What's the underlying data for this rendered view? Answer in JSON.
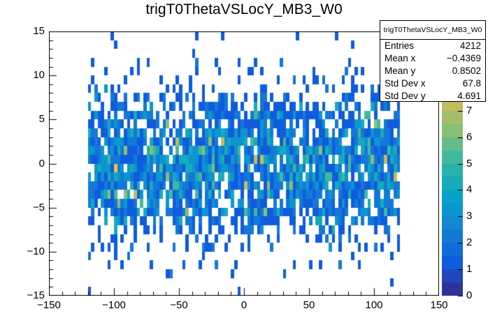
{
  "title": "trigT0ThetaVSLocY_MB3_W0",
  "stats": {
    "header": "trigT0ThetaVSLocY_MB3_W0",
    "rows": [
      {
        "label": "Entries",
        "value": "4212"
      },
      {
        "label": "Mean x",
        "value": "−0.4369"
      },
      {
        "label": "Mean y",
        "value": "0.8502"
      },
      {
        "label": "Std Dev x",
        "value": "67.8"
      },
      {
        "label": "Std Dev y",
        "value": "4.691"
      }
    ]
  },
  "chart_data": {
    "type": "heatmap",
    "title": "trigT0ThetaVSLocY_MB3_W0",
    "x_range": [
      -150,
      150
    ],
    "y_range": [
      -15,
      15
    ],
    "z_range": [
      0,
      10
    ],
    "x_data_range": [
      -120,
      120
    ],
    "x_bin_width": 2.5,
    "y_bin_width": 1,
    "x_minor_step": 10,
    "y_minor_step": 1,
    "n_contours": 20,
    "grid": false,
    "x_ticks": [
      {
        "v": -150,
        "label": "−150"
      },
      {
        "v": -100,
        "label": "−100"
      },
      {
        "v": -50,
        "label": "−50"
      },
      {
        "v": 0,
        "label": "0"
      },
      {
        "v": 50,
        "label": "50"
      },
      {
        "v": 100,
        "label": "100"
      },
      {
        "v": 150,
        "label": "150"
      }
    ],
    "y_ticks": [
      {
        "v": -15,
        "label": "−15"
      },
      {
        "v": -10,
        "label": "−10"
      },
      {
        "v": -5,
        "label": "−5"
      },
      {
        "v": 0,
        "label": "0"
      },
      {
        "v": 5,
        "label": "5"
      },
      {
        "v": 10,
        "label": "10"
      },
      {
        "v": 15,
        "label": "15"
      }
    ],
    "z_ticks": [
      {
        "v": 0,
        "label": "0"
      },
      {
        "v": 1,
        "label": "1"
      },
      {
        "v": 2,
        "label": "2"
      },
      {
        "v": 3,
        "label": "3"
      },
      {
        "v": 4,
        "label": "4"
      },
      {
        "v": 5,
        "label": "5"
      },
      {
        "v": 6,
        "label": "6"
      },
      {
        "v": 7,
        "label": "7"
      }
    ],
    "stats": {
      "entries": 4212,
      "mean_x": -0.4369,
      "mean_y": 0.8502,
      "std_dev_x": 67.8,
      "std_dev_y": 4.691
    },
    "palette_stops": [
      [
        0.2082,
        0.1664,
        0.5293
      ],
      [
        0.0592,
        0.3599,
        0.8684
      ],
      [
        0.078,
        0.5041,
        0.8385
      ],
      [
        0.0232,
        0.6419,
        0.7914
      ],
      [
        0.1802,
        0.7178,
        0.6425
      ],
      [
        0.5301,
        0.7492,
        0.4662
      ],
      [
        0.8186,
        0.7328,
        0.3499
      ],
      [
        0.9956,
        0.7862,
        0.1968
      ],
      [
        0.9764,
        0.9832,
        0.0539
      ]
    ],
    "density_bands": [
      {
        "abs_y_max": 2,
        "fill": 0.87,
        "weights": [
          [
            1,
            0.28
          ],
          [
            2,
            0.26
          ],
          [
            3,
            0.2
          ],
          [
            4,
            0.14
          ],
          [
            5,
            0.07
          ],
          [
            6,
            0.03
          ],
          [
            7,
            0.01
          ],
          [
            8,
            0.003
          ]
        ]
      },
      {
        "abs_y_max": 4,
        "fill": 0.82,
        "weights": [
          [
            1,
            0.34
          ],
          [
            2,
            0.27
          ],
          [
            3,
            0.19
          ],
          [
            4,
            0.12
          ],
          [
            5,
            0.05
          ],
          [
            6,
            0.02
          ],
          [
            7,
            0.01
          ]
        ]
      },
      {
        "abs_y_max": 6,
        "fill": 0.72,
        "weights": [
          [
            1,
            0.45
          ],
          [
            2,
            0.29
          ],
          [
            3,
            0.15
          ],
          [
            4,
            0.07
          ],
          [
            5,
            0.03
          ],
          [
            6,
            0.01
          ]
        ]
      },
      {
        "abs_y_max": 7,
        "fill": 0.55,
        "weights": [
          [
            1,
            0.55
          ],
          [
            2,
            0.3
          ],
          [
            3,
            0.1
          ],
          [
            4,
            0.05
          ]
        ]
      },
      {
        "abs_y_max": 8,
        "fill": 0.4,
        "weights": [
          [
            1,
            0.62
          ],
          [
            2,
            0.28
          ],
          [
            3,
            0.08
          ],
          [
            4,
            0.02
          ]
        ]
      },
      {
        "abs_y_max": 10,
        "fill": 0.22,
        "weights": [
          [
            1,
            0.75
          ],
          [
            2,
            0.2
          ],
          [
            3,
            0.05
          ]
        ]
      },
      {
        "abs_y_max": 12,
        "fill": 0.11,
        "weights": [
          [
            1,
            0.8
          ],
          [
            2,
            0.2
          ]
        ]
      },
      {
        "abs_y_max": 13,
        "fill": 0.04,
        "weights": [
          [
            1,
            0.85
          ],
          [
            2,
            0.15
          ]
        ]
      },
      {
        "abs_y_max": 14,
        "fill": 0.025,
        "weights": [
          [
            1,
            0.9
          ],
          [
            2,
            0.1
          ]
        ]
      },
      {
        "abs_y_max": 15.1,
        "fill": 0.055,
        "weights": [
          [
            1,
            0.9
          ],
          [
            2,
            0.1
          ]
        ]
      }
    ],
    "highlight_bins": [
      {
        "x": -100,
        "y": -1,
        "z": 8
      },
      {
        "x": 7.5,
        "y": 0,
        "z": 7
      },
      {
        "x": -60,
        "y": 4,
        "z": 6
      }
    ],
    "seed": 7
  }
}
